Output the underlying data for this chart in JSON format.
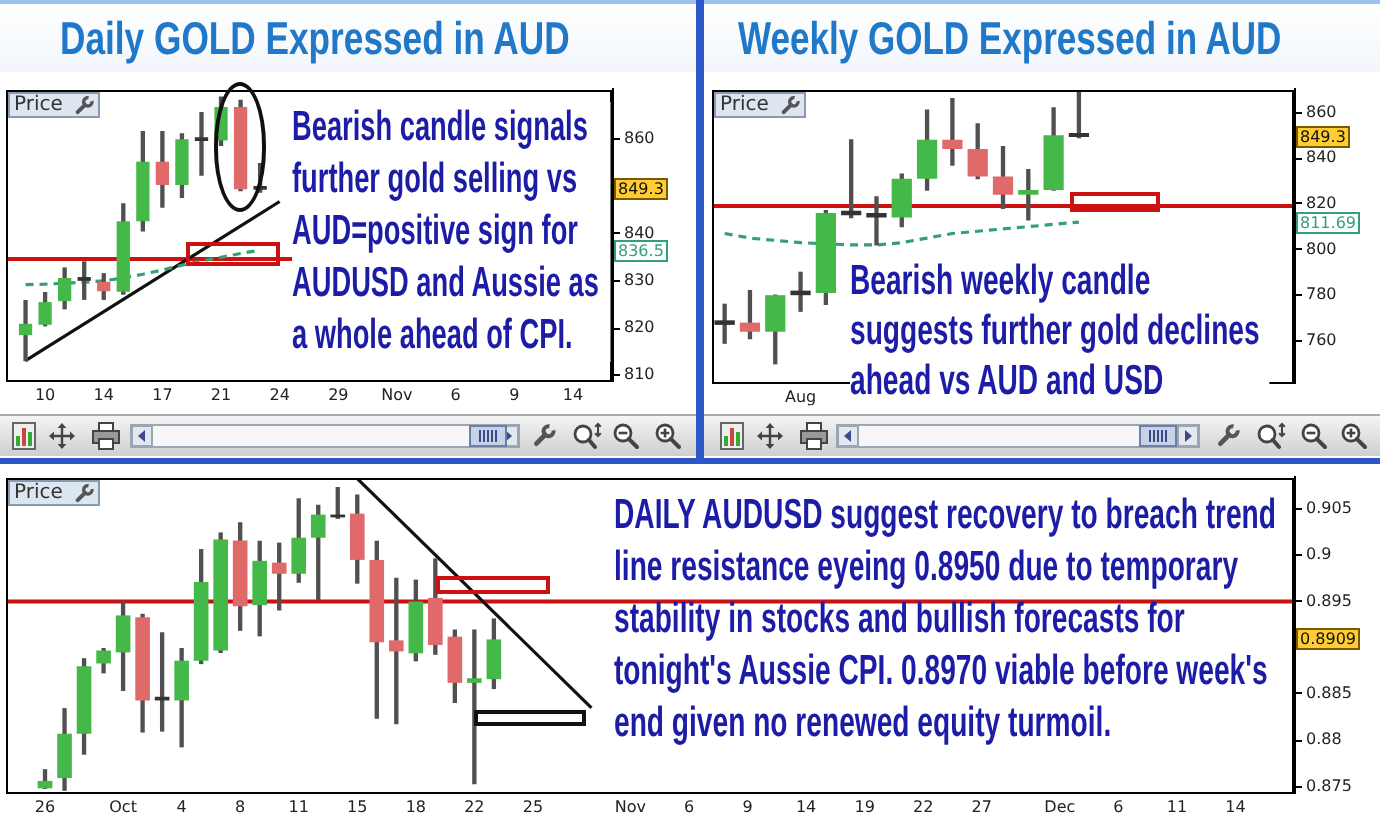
{
  "chart_data": [
    {
      "type": "candlestick",
      "title": "Daily GOLD Expressed in AUD",
      "categories": [
        null,
        null,
        "10",
        null,
        null,
        "14",
        null,
        null,
        "17",
        null,
        null,
        "21",
        null,
        null,
        "24",
        null,
        null,
        "29",
        null,
        null,
        "Nov",
        null,
        null,
        "6",
        null,
        null,
        "9",
        null,
        null,
        "14",
        null,
        null
      ],
      "ohlc": [
        null,
        [
          818.5,
          825.8,
          813.1,
          820.9
        ],
        [
          820.7,
          827.5,
          820.5,
          825.5
        ],
        [
          825.7,
          832.7,
          824.1,
          830.6
        ],
        [
          830.0,
          834.0,
          826.1,
          830.8
        ],
        [
          829.8,
          831.5,
          826.1,
          827.8
        ],
        [
          827.7,
          846.3,
          827.2,
          842.6
        ],
        [
          842.6,
          861.6,
          840.6,
          855.2
        ],
        [
          855.2,
          861.6,
          845.6,
          850.3
        ],
        [
          850.3,
          861.1,
          847.7,
          860.0
        ],
        [
          859.6,
          865.6,
          852.4,
          860.4
        ],
        [
          859.7,
          868.9,
          858.7,
          866.8
        ],
        [
          866.8,
          868.2,
          849.1,
          849.4
        ],
        [
          850.1,
          854.8,
          848.8,
          849.3
        ],
        null,
        null,
        null,
        null,
        null,
        null,
        null,
        null,
        null,
        null,
        null,
        null,
        null,
        null,
        null,
        null,
        null,
        null
      ],
      "colors": [
        null,
        "#44b848",
        "#44b848",
        "#44b848",
        "#333333",
        "#e06a6a",
        "#44b848",
        "#44b848",
        "#e06a6a",
        "#44b848",
        "#333333",
        "#44b848",
        "#e06a6a",
        "#333333",
        null,
        null,
        null,
        null,
        null,
        null,
        null,
        null,
        null,
        null,
        null,
        null,
        null,
        null,
        null,
        null,
        null,
        null
      ],
      "ylim": [
        809,
        870.5
      ],
      "yticks": [
        810,
        820,
        830,
        840,
        860
      ],
      "series": [
        {
          "type": "line",
          "color": "#33a07a",
          "line_style": "dashed",
          "values": [
            null,
            829.2,
            829.3,
            829.5,
            829.7,
            830.0,
            830.6,
            831.4,
            832.3,
            833.3,
            834.2,
            835.0,
            835.8,
            836.5,
            null,
            null,
            null,
            null,
            null,
            null,
            null,
            null,
            null,
            null,
            null,
            null,
            null,
            null,
            null,
            null,
            null,
            null
          ]
        },
        {
          "type": "line",
          "color": "#111111",
          "values": [
            null,
            813.1,
            null,
            null,
            null,
            null,
            null,
            null,
            null,
            null,
            null,
            null,
            null,
            null,
            846.8,
            null,
            null,
            null,
            null,
            null,
            null,
            null,
            null,
            null,
            null,
            null,
            null,
            null,
            null,
            null,
            null,
            null
          ]
        }
      ],
      "ref_lines": [
        {
          "axis": "y",
          "value": 834.6,
          "color": "#cc1111"
        }
      ],
      "annotations": [
        "Price",
        {
          "text": "849.3",
          "y": 849.3
        },
        {
          "text": "836.5",
          "y": 836.5
        },
        "Bearish candle signals further gold selling vs AUD=positive sign for AUDUSD and Aussie as a whole ahead of CPI."
      ]
    },
    {
      "type": "candlestick",
      "title": "Weekly GOLD Expressed in AUD",
      "categories": [
        null,
        null,
        null,
        "Aug",
        null,
        null,
        null,
        null,
        null,
        null,
        null,
        null,
        null,
        null,
        null,
        null,
        null,
        null,
        null,
        null,
        null,
        null,
        null
      ],
      "ohlc": [
        [
          767,
          776,
          759,
          769
        ],
        [
          768,
          782,
          761,
          764
        ],
        [
          764,
          780,
          750,
          780
        ],
        [
          780,
          790,
          773,
          782
        ],
        [
          781,
          817,
          776,
          816
        ],
        [
          815,
          848,
          814,
          817
        ],
        [
          814,
          823,
          802,
          816
        ],
        [
          814,
          833,
          810,
          831
        ],
        [
          831,
          861,
          826,
          848
        ],
        [
          848,
          866,
          837,
          844
        ],
        [
          844,
          855,
          831,
          832
        ],
        [
          832,
          845,
          818,
          824
        ],
        [
          824,
          835,
          813,
          826
        ],
        [
          826,
          862,
          826,
          850
        ],
        [
          851,
          869,
          849,
          849.3
        ],
        null,
        null,
        null,
        null,
        null,
        null,
        null,
        null
      ],
      "colors": [
        "#333333",
        "#e06a6a",
        "#44b848",
        "#333333",
        "#44b848",
        "#333333",
        "#333333",
        "#44b848",
        "#44b848",
        "#e06a6a",
        "#e06a6a",
        "#e06a6a",
        "#44b848",
        "#44b848",
        "#333333",
        null,
        null,
        null,
        null,
        null,
        null,
        null,
        null
      ],
      "ylim": [
        742,
        870
      ],
      "yticks": [
        760,
        780,
        800,
        820,
        840,
        860
      ],
      "series": [
        {
          "type": "line",
          "color": "#33a07a",
          "line_style": "dashed",
          "values": [
            807,
            805,
            804,
            803,
            null,
            802,
            802,
            803,
            805,
            807,
            808,
            809,
            810,
            811,
            812,
            null,
            null,
            null,
            null,
            null,
            null,
            null,
            null
          ]
        }
      ],
      "ref_lines": [
        {
          "axis": "y",
          "value": 819,
          "color": "#cc1111"
        }
      ],
      "annotations": [
        "Price",
        {
          "text": "849.3",
          "y": 849.3
        },
        {
          "text": "811.69",
          "y": 811.69
        },
        "Bearish weekly candle suggests further gold declines ahead vs AUD and USD"
      ]
    },
    {
      "type": "candlestick",
      "categories": [
        null,
        null,
        "26",
        null,
        null,
        null,
        "Oct",
        null,
        null,
        "4",
        null,
        null,
        "8",
        null,
        null,
        "11",
        null,
        null,
        "15",
        null,
        null,
        "18",
        null,
        null,
        "22",
        null,
        null,
        "25",
        null,
        null,
        null,
        null,
        "Nov",
        null,
        null,
        "6",
        null,
        null,
        "9",
        null,
        null,
        "14",
        null,
        null,
        "19",
        null,
        null,
        "22",
        null,
        null,
        "27",
        null,
        null,
        null,
        "Dec",
        null,
        null,
        "6",
        null,
        null,
        "11",
        null,
        null,
        "14",
        null,
        null,
        null
      ],
      "ohlc": [
        null,
        null,
        [
          0.8748,
          0.8768,
          0.8748,
          0.8756
        ],
        [
          0.8759,
          0.8834,
          0.8746,
          0.8807
        ],
        [
          0.8807,
          0.8888,
          0.8785,
          0.888
        ],
        [
          0.8883,
          0.8899,
          0.8873,
          0.8897
        ],
        [
          0.8895,
          0.8949,
          0.8854,
          0.8935
        ],
        [
          0.8933,
          0.8936,
          0.8809,
          0.8843
        ],
        [
          0.8843,
          0.8916,
          0.881,
          0.8847
        ],
        [
          0.8843,
          0.8899,
          0.8793,
          0.8886
        ],
        [
          0.8886,
          0.9006,
          0.8883,
          0.8971
        ],
        [
          0.8897,
          0.9024,
          0.8895,
          0.9017
        ],
        [
          0.9016,
          0.9035,
          0.8919,
          0.8945
        ],
        [
          0.8946,
          0.9015,
          0.8913,
          0.8994
        ],
        [
          0.8992,
          0.9013,
          0.8941,
          0.898
        ],
        [
          0.898,
          0.9061,
          0.8971,
          0.9019
        ],
        [
          0.9019,
          0.9054,
          0.8952,
          0.9044
        ],
        [
          0.9041,
          0.9073,
          0.904,
          0.9044
        ],
        [
          0.9045,
          0.9065,
          0.897,
          0.8995
        ],
        [
          0.8995,
          0.9015,
          0.8824,
          0.8906
        ],
        [
          0.8908,
          0.8975,
          0.8818,
          0.8896
        ],
        [
          0.8894,
          0.8973,
          0.8886,
          0.895
        ],
        [
          0.8954,
          0.8996,
          0.8893,
          0.8903
        ],
        [
          0.8912,
          0.8919,
          0.8841,
          0.8862
        ],
        [
          0.8862,
          0.8919,
          0.8753,
          0.8867
        ],
        [
          0.8866,
          0.8931,
          0.8856,
          0.8909
        ],
        null,
        null,
        null,
        null,
        null,
        null,
        null,
        null,
        null,
        null,
        null,
        null,
        null,
        null,
        null,
        null,
        null,
        null,
        null,
        null,
        null,
        null,
        null,
        null,
        null,
        null,
        null,
        null,
        null,
        null,
        null,
        null,
        null,
        null,
        null,
        null,
        null,
        null,
        null,
        null,
        null
      ],
      "colors": [
        null,
        null,
        "#44b848",
        "#44b848",
        "#44b848",
        "#44b848",
        "#44b848",
        "#e06a6a",
        "#333333",
        "#44b848",
        "#44b848",
        "#44b848",
        "#e06a6a",
        "#44b848",
        "#e06a6a",
        "#44b848",
        "#44b848",
        "#333333",
        "#e06a6a",
        "#e06a6a",
        "#e06a6a",
        "#44b848",
        "#e06a6a",
        "#e06a6a",
        "#44b848",
        "#44b848",
        null,
        null,
        null,
        null,
        null,
        null,
        null,
        null,
        null,
        null,
        null,
        null,
        null,
        null,
        null,
        null,
        null,
        null,
        null,
        null,
        null,
        null,
        null,
        null,
        null,
        null,
        null,
        null,
        null,
        null,
        null,
        null,
        null,
        null,
        null,
        null,
        null,
        null,
        null,
        null,
        null
      ],
      "ylim": [
        0.8744,
        0.9084
      ],
      "yticks": [
        0.875,
        0.88,
        0.885,
        0.895,
        0.9,
        0.905
      ],
      "series": [
        {
          "type": "line",
          "color": "#111111",
          "values": [
            null,
            null,
            null,
            null,
            null,
            null,
            null,
            null,
            null,
            null,
            null,
            null,
            null,
            null,
            null,
            null,
            null,
            null,
            0.9083,
            null,
            null,
            null,
            null,
            null,
            null,
            null,
            null,
            null,
            null,
            null,
            0.8835,
            null,
            null,
            null,
            null,
            null,
            null,
            null,
            null,
            null,
            null,
            null,
            null,
            null,
            null,
            null,
            null,
            null,
            null,
            null,
            null,
            null,
            null,
            null,
            null,
            null,
            null,
            null,
            null,
            null,
            null,
            null,
            null,
            null,
            null,
            null,
            null
          ]
        }
      ],
      "ref_lines": [
        {
          "axis": "y",
          "value": 0.895,
          "color": "#cc1111"
        }
      ],
      "annotations": [
        "Price",
        {
          "text": "0.8909",
          "y": 0.8909
        },
        "DAILY AUDUSD suggest recovery to breach trend line resistance eyeing 0.8950 due to temporary stability in stocks and bullish forecasts for tonight's Aussie CPI. 0.8970 viable before week's end given no renewed equity turmoil."
      ]
    }
  ]
}
